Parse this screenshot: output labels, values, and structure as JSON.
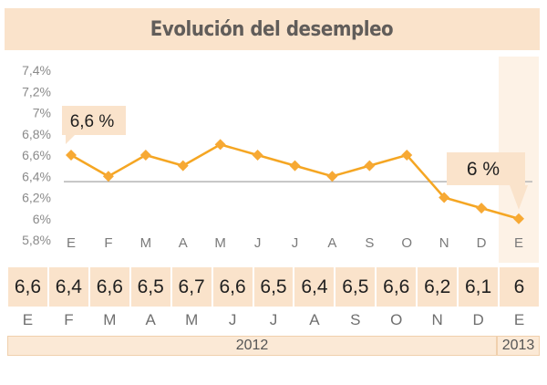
{
  "title": "Evolución del desempleo",
  "chart_data": {
    "type": "line",
    "categories": [
      "E",
      "F",
      "M",
      "A",
      "M",
      "J",
      "J",
      "A",
      "S",
      "O",
      "N",
      "D",
      "E"
    ],
    "values": [
      6.6,
      6.4,
      6.6,
      6.5,
      6.7,
      6.6,
      6.5,
      6.4,
      6.5,
      6.6,
      6.2,
      6.1,
      6.0
    ],
    "value_labels": [
      "6,6",
      "6,4",
      "6,6",
      "6,5",
      "6,7",
      "6,6",
      "6,5",
      "6,4",
      "6,5",
      "6,6",
      "6,2",
      "6,1",
      "6"
    ],
    "yticks": [
      {
        "value": 7.4,
        "label": "7,4%"
      },
      {
        "value": 7.2,
        "label": "7,2%"
      },
      {
        "value": 7.0,
        "label": "7%"
      },
      {
        "value": 6.8,
        "label": "6,8%"
      },
      {
        "value": 6.6,
        "label": "6,6%"
      },
      {
        "value": 6.4,
        "label": "6,4%"
      },
      {
        "value": 6.2,
        "label": "6,2%"
      },
      {
        "value": 6.0,
        "label": "6%"
      },
      {
        "value": 5.8,
        "label": "5,8%"
      }
    ],
    "ylim": [
      5.8,
      7.4
    ],
    "reference_line": 6.35,
    "years": [
      {
        "label": "2012",
        "months": 12
      },
      {
        "label": "2013",
        "months": 1
      }
    ],
    "annotations": [
      {
        "index": 0,
        "text": "6,6 %"
      },
      {
        "index": 12,
        "text": "6 %"
      }
    ],
    "colors": {
      "line": "#f5a623",
      "marker": "#f7a934",
      "reference": "#b5b5b5",
      "panel": "#fae3cb",
      "highlight": "#fdf2e6"
    }
  }
}
